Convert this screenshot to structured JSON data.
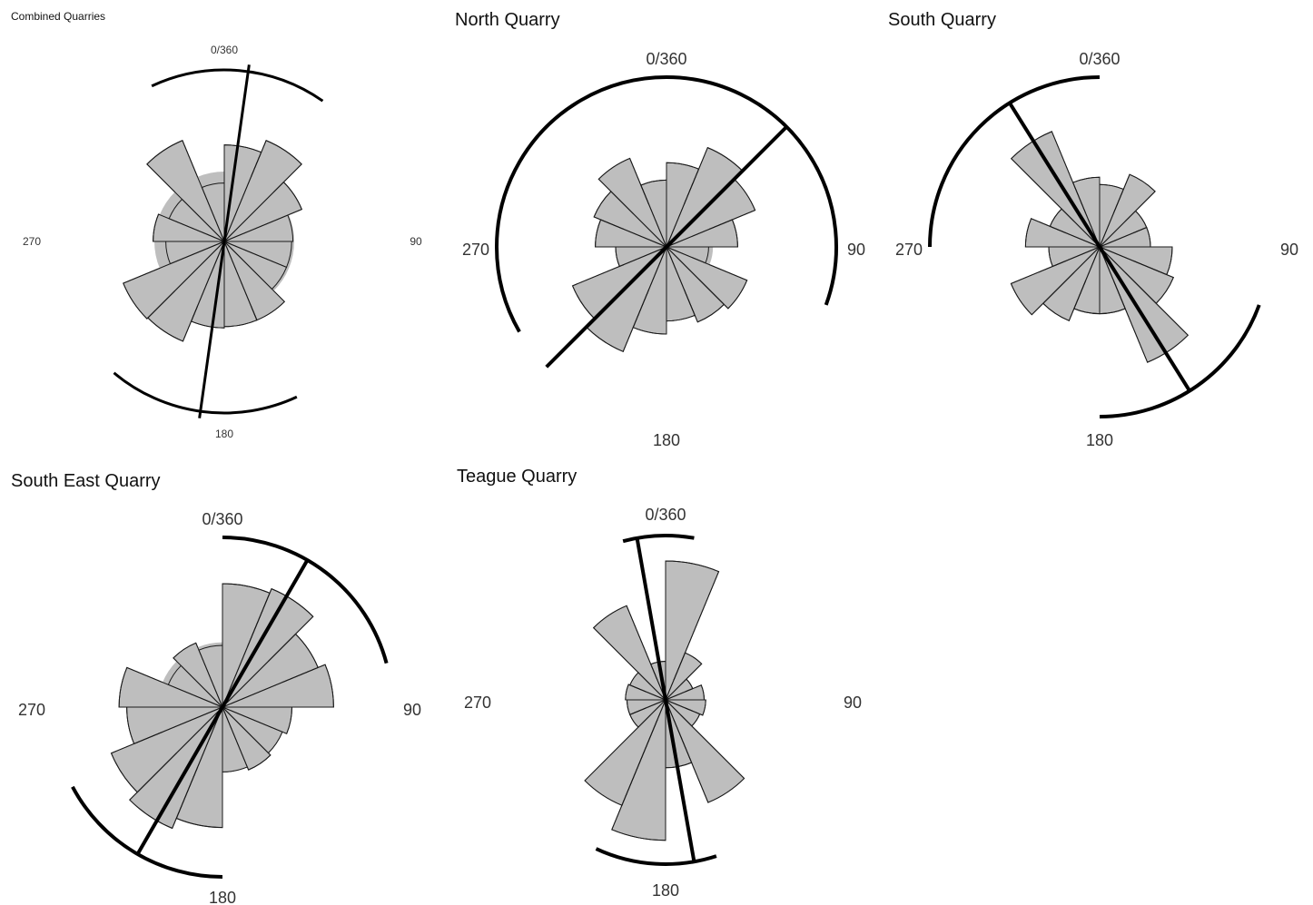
{
  "colors": {
    "petal_fill": "#bebebe",
    "petal_stroke": "#1a1a1a",
    "mean_line": "#000000",
    "background": "#ffffff"
  },
  "chart_data": [
    {
      "type": "rose",
      "title": "Combined Quarries",
      "direction_labels": {
        "north": "0/360",
        "east": "90",
        "south": "180",
        "west": "270"
      },
      "sector_width_deg": 22.5,
      "sectors_deg": [
        0,
        22.5,
        45,
        67.5,
        90,
        112.5,
        135,
        157.5,
        180,
        202.5,
        225,
        247.5,
        270,
        292.5,
        315,
        337.5
      ],
      "radius_share": [
        0.76,
        0.86,
        0.66,
        0.54,
        0.53,
        0.53,
        0.67,
        0.67,
        0.68,
        0.85,
        0.86,
        0.46,
        0.56,
        0.47,
        0.86,
        0.46
      ],
      "hub_share": 0.55,
      "mean_direction_deg": 188,
      "mean_line_share": 1.04,
      "confidence_arcs_deg": [
        [
          335,
          35
        ],
        [
          155,
          220
        ]
      ]
    },
    {
      "type": "rose",
      "title": "North Quarry",
      "direction_labels": {
        "north": "0/360",
        "east": "90",
        "south": "180",
        "west": "270"
      },
      "sector_width_deg": 22.5,
      "sectors_deg": [
        0,
        22.5,
        45,
        67.5,
        90,
        112.5,
        135,
        157.5,
        180,
        202.5,
        225,
        247.5,
        270,
        292.5,
        315,
        337.5
      ],
      "radius_share": [
        0.58,
        0.74,
        0.66,
        0.49,
        0.29,
        0.6,
        0.56,
        0.51,
        0.6,
        0.78,
        0.7,
        0.35,
        0.49,
        0.54,
        0.66,
        0.46
      ],
      "hub_share": 0.32,
      "mean_direction_deg": 45,
      "mean_line_share": 1.0,
      "confidence_arcs_deg": [
        [
          0,
          110
        ],
        [
          240,
          360
        ]
      ]
    },
    {
      "type": "rose",
      "title": "South Quarry",
      "direction_labels": {
        "north": "0/360",
        "east": "90",
        "south": "180",
        "west": "270"
      },
      "sector_width_deg": 22.5,
      "sectors_deg": [
        0,
        22.5,
        45,
        67.5,
        90,
        112.5,
        135,
        157.5,
        180,
        202.5,
        225,
        247.5,
        270,
        292.5,
        315,
        337.5
      ],
      "radius_share": [
        0.43,
        0.54,
        0.35,
        0.35,
        0.5,
        0.55,
        0.86,
        0.46,
        0.46,
        0.55,
        0.66,
        0.35,
        0.51,
        0.37,
        0.86,
        0.48
      ],
      "hub_share": 0.25,
      "mean_direction_deg": 148,
      "mean_line_share": 1.0,
      "confidence_arcs_deg": [
        [
          110,
          180
        ],
        [
          270,
          360
        ]
      ]
    },
    {
      "type": "rose",
      "title": "South East Quarry",
      "direction_labels": {
        "north": "0/360",
        "east": "90",
        "south": "180",
        "west": "270"
      },
      "sector_width_deg": 22.5,
      "sectors_deg": [
        0,
        22.5,
        45,
        67.5,
        90,
        112.5,
        135,
        157.5,
        180,
        202.5,
        225,
        247.5,
        270,
        292.5,
        315,
        337.5
      ],
      "radius_share": [
        0.8,
        0.83,
        0.67,
        0.72,
        0.45,
        0.42,
        0.44,
        0.42,
        0.78,
        0.85,
        0.78,
        0.62,
        0.67,
        0.38,
        0.45,
        0.4
      ],
      "hub_share": 0.42,
      "mean_direction_deg": 30,
      "mean_line_share": 1.0,
      "confidence_arcs_deg": [
        [
          0,
          75
        ],
        [
          180,
          242
        ]
      ]
    },
    {
      "type": "rose",
      "title": "Teague Quarry",
      "direction_labels": {
        "north": "0/360",
        "east": "90",
        "south": "180",
        "west": "270"
      },
      "sector_width_deg": 22.5,
      "sectors_deg": [
        0,
        22.5,
        45,
        67.5,
        90,
        112.5,
        135,
        157.5,
        180,
        202.5,
        225,
        247.5,
        270,
        292.5,
        315,
        337.5
      ],
      "radius_share": [
        0.9,
        0.33,
        0.19,
        0.25,
        0.26,
        0.24,
        0.72,
        0.44,
        0.91,
        0.74,
        0.25,
        0.25,
        0.26,
        0.25,
        0.66,
        0.25
      ],
      "hub_share": 0.14,
      "mean_direction_deg": 170,
      "mean_line_share": 1.0,
      "confidence_arcs_deg": [
        [
          345,
          10
        ],
        [
          162,
          205
        ]
      ]
    }
  ]
}
